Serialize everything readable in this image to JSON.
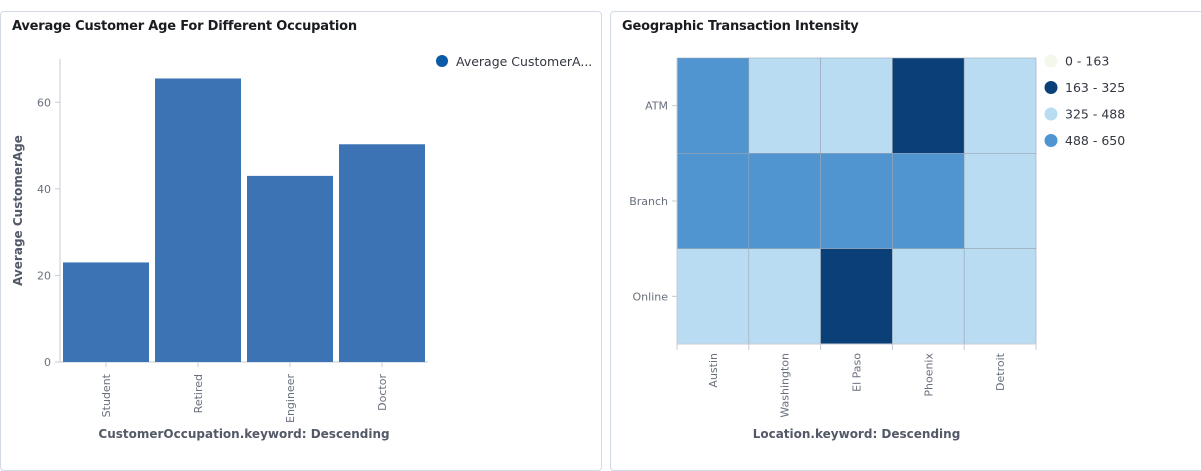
{
  "charts": [
    {
      "panel_title": "Average Customer Age For Different Occupation",
      "chart_data": {
        "type": "bar",
        "categories": [
          "Student",
          "Retired",
          "Engineer",
          "Doctor"
        ],
        "values": [
          23,
          65.5,
          43,
          50.3
        ],
        "xlabel": "CustomerOccupation.keyword: Descending",
        "ylabel": "Average CustomerAge",
        "ylim": [
          0,
          70
        ],
        "yticks": [
          0,
          20,
          40,
          60
        ],
        "legend": {
          "label": "Average CustomerA...",
          "position": "top-right"
        },
        "bar_color": "#3b73b4",
        "legend_color": "#0b5aa5"
      }
    },
    {
      "panel_title": "Geographic Transaction Intensity",
      "chart_data": {
        "type": "heatmap",
        "x": [
          "Austin",
          "Washington",
          "El Paso",
          "Phoenix",
          "Detroit"
        ],
        "y": [
          "ATM",
          "Branch",
          "Online"
        ],
        "bins": [
          {
            "label": "0 - 163",
            "color": "#f3f7ec"
          },
          {
            "label": "163 - 325",
            "color": "#0b3f78"
          },
          {
            "label": "325 - 488",
            "color": "#b9dcf3"
          },
          {
            "label": "488 - 650",
            "color": "#5094d0"
          }
        ],
        "cell_bins": [
          [
            3,
            2,
            2,
            1,
            2
          ],
          [
            3,
            3,
            3,
            3,
            2
          ],
          [
            2,
            2,
            1,
            2,
            2
          ]
        ],
        "xlabel": "Location.keyword: Descending",
        "ylabel": "",
        "legend_position": "top-right"
      }
    }
  ]
}
